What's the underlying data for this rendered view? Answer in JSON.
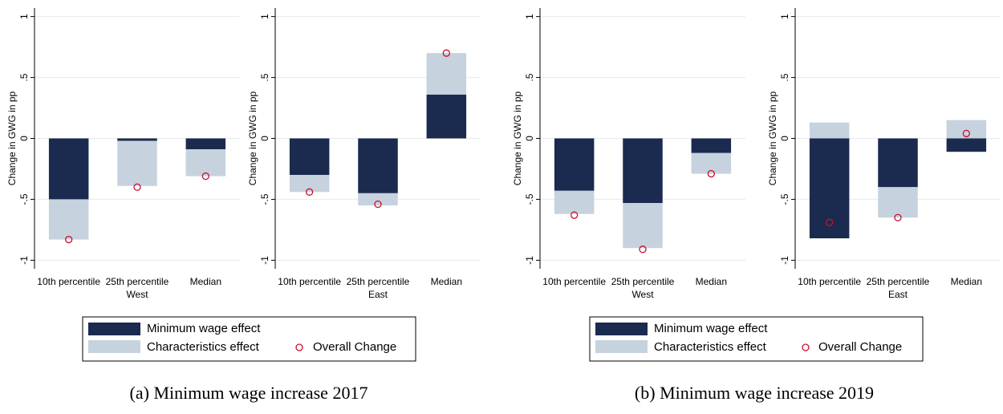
{
  "chart_data": [
    {
      "type": "bar",
      "stacked": true,
      "y_label": "Change in GWG in pp",
      "x_label": "West",
      "categories": [
        "10th percentile",
        "25th percentile",
        "Median"
      ],
      "series": [
        {
          "name": "Minimum wage effect",
          "color": "#1b2a4f",
          "values": [
            -0.5,
            -0.02,
            -0.09
          ]
        },
        {
          "name": "Characteristics effect",
          "color": "#c6d2de",
          "values": [
            -0.33,
            -0.37,
            -0.22
          ]
        },
        {
          "name": "Overall Change",
          "type": "scatter",
          "color": "#c8102e",
          "values": [
            -0.83,
            -0.4,
            -0.31
          ]
        }
      ],
      "ylim": [
        -1.07,
        1.07
      ],
      "yticks": [
        -1,
        {
          "value": -0.5,
          "label": "-.5"
        },
        0,
        {
          "value": 0.5,
          "label": ".5"
        },
        1
      ],
      "grid": true
    },
    {
      "type": "bar",
      "stacked": true,
      "y_label": "Change in GWG in pp",
      "x_label": "East",
      "categories": [
        "10th percentile",
        "25th percentile",
        "Median"
      ],
      "series": [
        {
          "name": "Minimum wage effect",
          "color": "#1b2a4f",
          "values": [
            -0.3,
            -0.45,
            0.36
          ]
        },
        {
          "name": "Characteristics effect",
          "color": "#c6d2de",
          "values": [
            -0.14,
            -0.1,
            0.34
          ]
        },
        {
          "name": "Overall Change",
          "type": "scatter",
          "color": "#c8102e",
          "values": [
            -0.44,
            -0.54,
            0.7
          ]
        }
      ],
      "ylim": [
        -1.07,
        1.07
      ],
      "yticks": [
        -1,
        {
          "value": -0.5,
          "label": "-.5"
        },
        0,
        {
          "value": 0.5,
          "label": ".5"
        },
        1
      ],
      "grid": true
    },
    {
      "type": "bar",
      "stacked": true,
      "y_label": "Change in GWG in pp",
      "x_label": "West",
      "categories": [
        "10th percentile",
        "25th percentile",
        "Median"
      ],
      "series": [
        {
          "name": "Minimum wage effect",
          "color": "#1b2a4f",
          "values": [
            -0.43,
            -0.53,
            -0.12
          ]
        },
        {
          "name": "Characteristics effect",
          "color": "#c6d2de",
          "values": [
            -0.19,
            -0.37,
            -0.17
          ]
        },
        {
          "name": "Overall Change",
          "type": "scatter",
          "color": "#c8102e",
          "values": [
            -0.63,
            -0.91,
            -0.29
          ]
        }
      ],
      "ylim": [
        -1.07,
        1.07
      ],
      "yticks": [
        -1,
        {
          "value": -0.5,
          "label": "-.5"
        },
        0,
        {
          "value": 0.5,
          "label": ".5"
        },
        1
      ],
      "grid": true
    },
    {
      "type": "bar",
      "stacked": true,
      "y_label": "Change in GWG in pp",
      "x_label": "East",
      "categories": [
        "10th percentile",
        "25th percentile",
        "Median"
      ],
      "series": [
        {
          "name": "Minimum wage effect",
          "color": "#1b2a4f",
          "values": [
            -0.82,
            -0.4,
            -0.11
          ]
        },
        {
          "name": "Characteristics effect",
          "color": "#c6d2de",
          "values": [
            0.13,
            -0.25,
            0.15
          ]
        },
        {
          "name": "Overall Change",
          "type": "scatter",
          "color": "#c8102e",
          "values": [
            -0.69,
            -0.65,
            0.04
          ]
        }
      ],
      "ylim": [
        -1.07,
        1.07
      ],
      "yticks": [
        -1,
        {
          "value": -0.5,
          "label": "-.5"
        },
        0,
        {
          "value": 0.5,
          "label": ".5"
        },
        1
      ],
      "grid": true
    }
  ],
  "captions": [
    "(a) Minimum wage increase 2017",
    "(b) Minimum wage increase 2019"
  ]
}
